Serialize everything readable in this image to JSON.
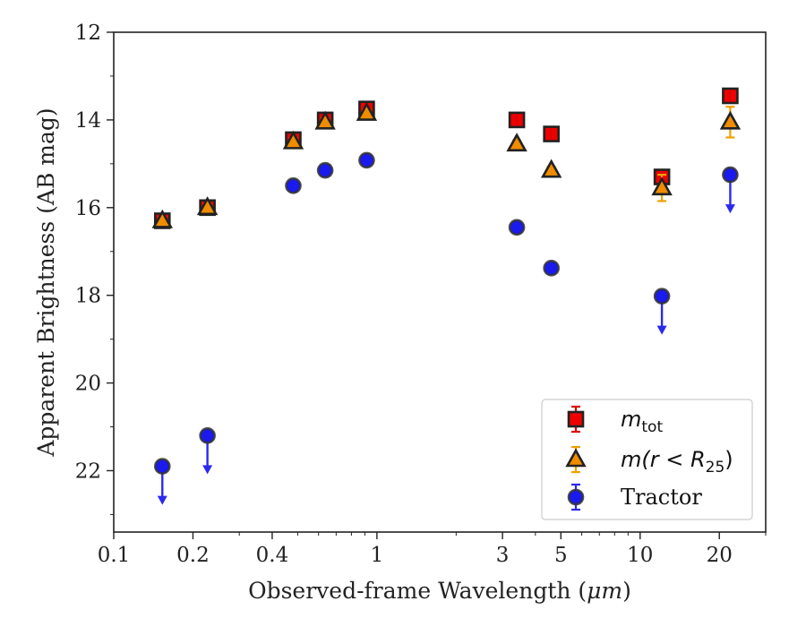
{
  "chart_data": {
    "type": "scatter",
    "xlabel": "Observed-frame Wavelength (μm)",
    "xlabel_prefix": "Observed-frame Wavelength (",
    "xlabel_unit": "μm",
    "xlabel_suffix": ")",
    "ylabel": "Apparent Brightness (AB mag)",
    "xscale": "log",
    "xlim": [
      0.1,
      30
    ],
    "ylim": [
      23.4,
      12
    ],
    "y_inverted": true,
    "xticks": [
      {
        "value": 0.1,
        "label": "0.1"
      },
      {
        "value": 0.2,
        "label": "0.2"
      },
      {
        "value": 0.4,
        "label": "0.4"
      },
      {
        "value": 1,
        "label": "1"
      },
      {
        "value": 3,
        "label": "3"
      },
      {
        "value": 5,
        "label": "5"
      },
      {
        "value": 10,
        "label": "10"
      },
      {
        "value": 20,
        "label": "20"
      }
    ],
    "yticks": [
      {
        "value": 12,
        "label": "12"
      },
      {
        "value": 14,
        "label": "14"
      },
      {
        "value": 16,
        "label": "16"
      },
      {
        "value": 18,
        "label": "18"
      },
      {
        "value": 20,
        "label": "20"
      },
      {
        "value": 22,
        "label": "22"
      }
    ],
    "grid": false,
    "legend_position": "lower-right",
    "series": [
      {
        "name": "m_tot",
        "legend_main": "m",
        "legend_sub": "tot",
        "marker": "square",
        "face_color": "#ee0000",
        "edge_color": "#222222",
        "error_color": "#dd0000",
        "points": [
          {
            "x": 0.153,
            "y": 16.3
          },
          {
            "x": 0.227,
            "y": 16.0
          },
          {
            "x": 0.481,
            "y": 14.45
          },
          {
            "x": 0.636,
            "y": 14.0
          },
          {
            "x": 0.914,
            "y": 13.75
          },
          {
            "x": 3.4,
            "y": 14.0
          },
          {
            "x": 4.6,
            "y": 14.32
          },
          {
            "x": 12.1,
            "y": 15.3
          },
          {
            "x": 22.0,
            "y": 13.45
          }
        ]
      },
      {
        "name": "m(r < R_25)",
        "legend_main": "m(r < R",
        "legend_sub": "25",
        "legend_close": ")",
        "marker": "triangle",
        "face_color": "#f08c00",
        "edge_color": "#222222",
        "error_color": "#f0a000",
        "points": [
          {
            "x": 0.153,
            "y": 16.3,
            "err": 0.05
          },
          {
            "x": 0.227,
            "y": 16.0,
            "err": 0.05
          },
          {
            "x": 0.481,
            "y": 14.5,
            "err": 0.05
          },
          {
            "x": 0.636,
            "y": 14.05,
            "err": 0.05
          },
          {
            "x": 0.914,
            "y": 13.85,
            "err": 0.05
          },
          {
            "x": 3.4,
            "y": 14.55,
            "err": 0.05
          },
          {
            "x": 4.6,
            "y": 15.15,
            "err": 0.05
          },
          {
            "x": 12.1,
            "y": 15.55,
            "err": 0.3
          },
          {
            "x": 22.0,
            "y": 14.05,
            "err": 0.35
          }
        ]
      },
      {
        "name": "Tractor",
        "legend_main": "Tractor",
        "marker": "circle",
        "face_color": "#1a1aee",
        "edge_color": "#333333",
        "error_color": "#2a2aee",
        "points": [
          {
            "x": 0.153,
            "y": 21.9,
            "upper_limit": true
          },
          {
            "x": 0.227,
            "y": 21.2,
            "upper_limit": true
          },
          {
            "x": 0.481,
            "y": 15.5
          },
          {
            "x": 0.636,
            "y": 15.15
          },
          {
            "x": 0.914,
            "y": 14.92
          },
          {
            "x": 3.4,
            "y": 16.45
          },
          {
            "x": 4.6,
            "y": 17.38
          },
          {
            "x": 12.1,
            "y": 18.02,
            "upper_limit": true
          },
          {
            "x": 22.0,
            "y": 15.25,
            "upper_limit": true
          }
        ]
      }
    ]
  }
}
